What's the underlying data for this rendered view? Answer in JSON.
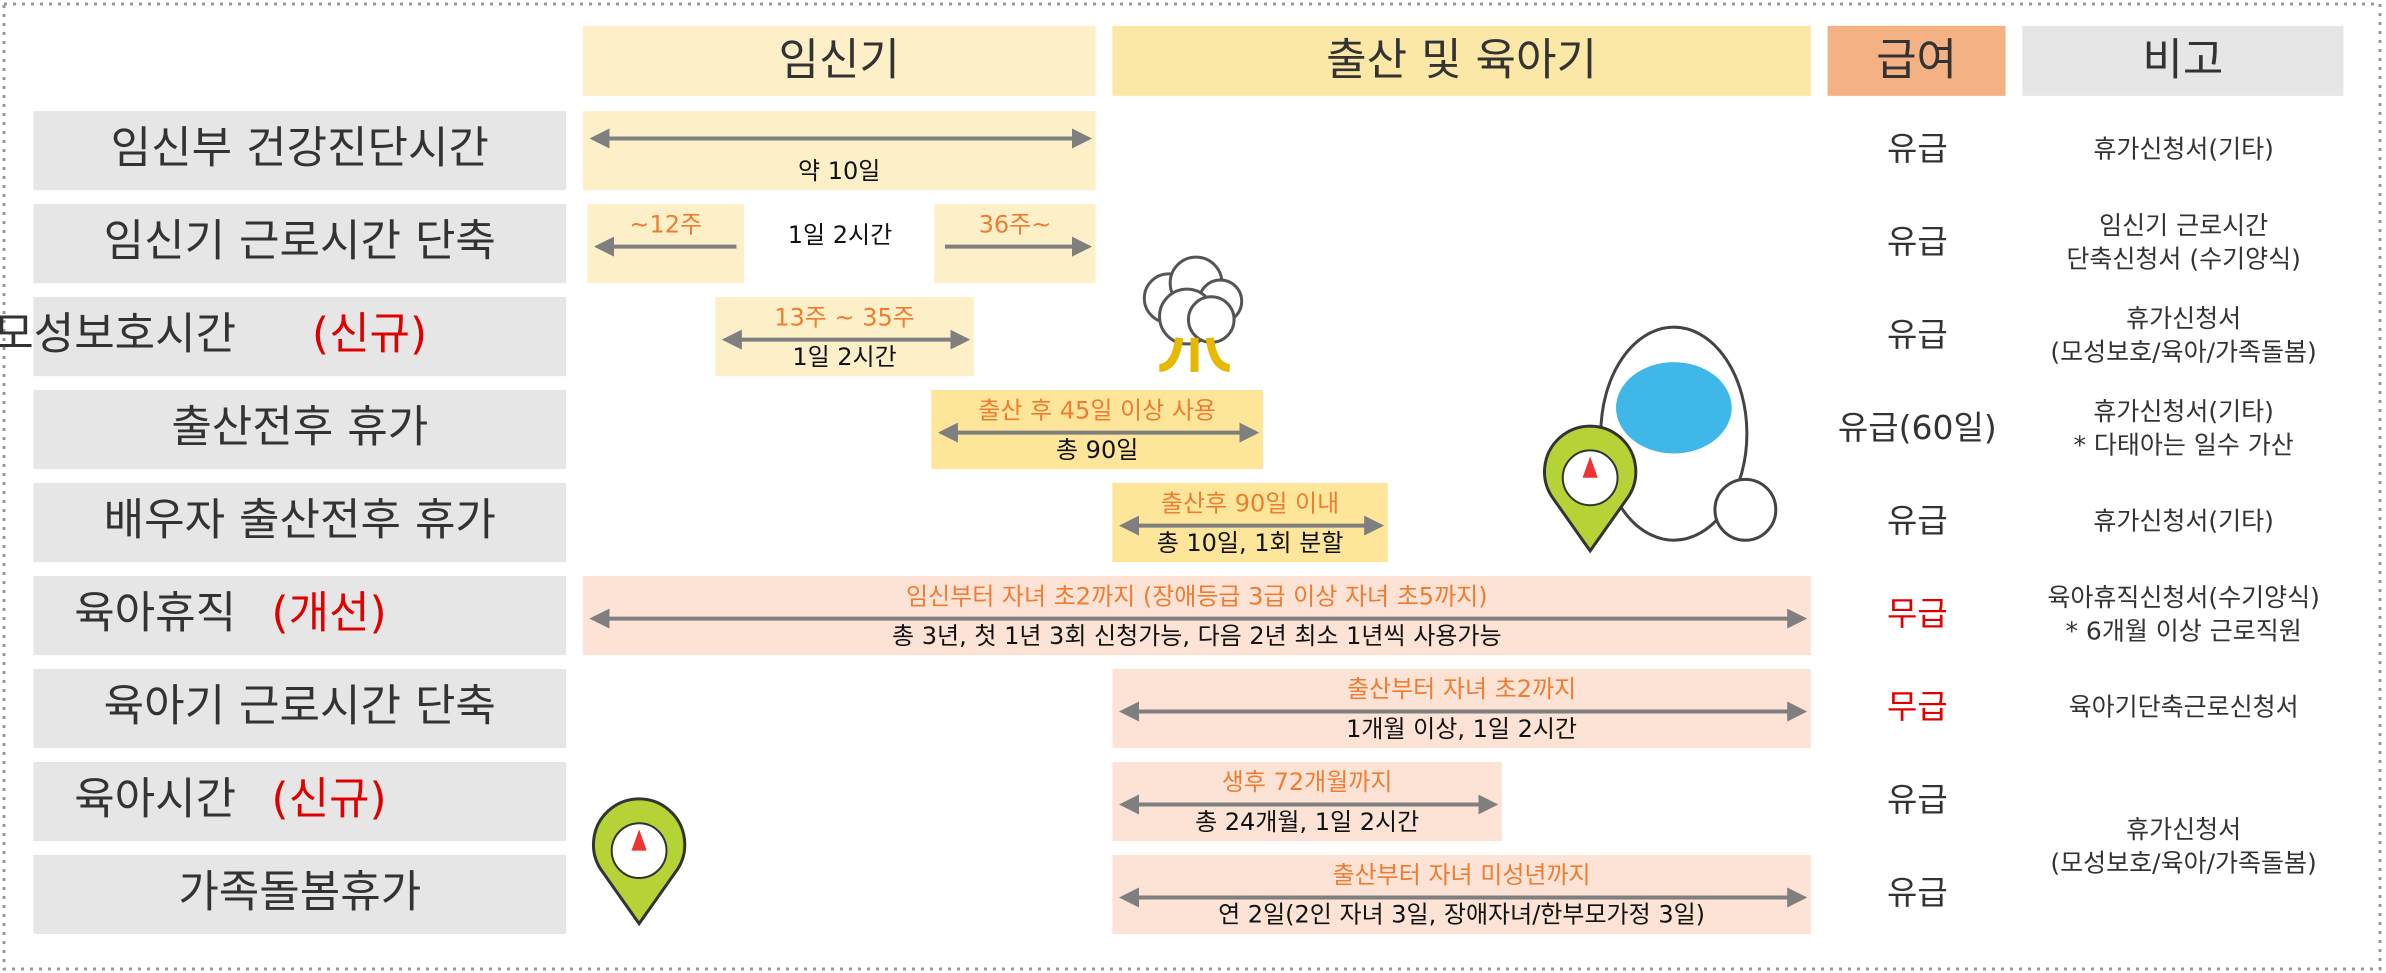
{
  "header": {
    "columns": [
      "임신기",
      "출산 및 육아기",
      "급여",
      "비고"
    ]
  },
  "rows": [
    {
      "label": "임신부 건강진단시간",
      "bars": [
        {
          "bottom": "약 10일"
        }
      ],
      "pay": "유급",
      "note": [
        "휴가신청서(기타)"
      ]
    },
    {
      "label": "임신기 근로시간 단축",
      "bars": [
        {
          "top": "~12주"
        },
        {
          "top": "36주~"
        }
      ],
      "text": "1일 2시간",
      "pay": "유급",
      "note": [
        "임신기 근로시간",
        "단축신청서 (수기양식)"
      ]
    },
    {
      "label": "모성보호시간",
      "tag": "(신규)",
      "bars": [
        {
          "top": "13주 ~ 35주",
          "bottom": "1일 2시간"
        }
      ],
      "pay": "유급",
      "note": [
        "휴가신청서",
        "(모성보호/육아/가족돌봄)"
      ]
    },
    {
      "label": "출산전후 휴가",
      "bars": [
        {
          "top": "출산 후 45일 이상 사용",
          "bottom": "총 90일"
        }
      ],
      "pay": "유급(60일)",
      "note": [
        "휴가신청서(기타)",
        "* 다태아는 일수 가산"
      ]
    },
    {
      "label": "배우자 출산전후 휴가",
      "bars": [
        {
          "top": "출산후 90일 이내",
          "bottom": "총 10일, 1회 분할"
        }
      ],
      "pay": "유급",
      "note": [
        "휴가신청서(기타)"
      ]
    },
    {
      "label": "육아휴직",
      "tag": "(개선)",
      "bars": [
        {
          "top": "임신부터 자녀 초2까지 (장애등급 3급 이상 자녀 초5까지)",
          "bottom": "총 3년, 첫 1년 3회 신청가능, 다음 2년 최소 1년씩 사용가능"
        }
      ],
      "pay": "무급",
      "note": [
        "육아휴직신청서(수기양식)",
        "* 6개월 이상 근로직원"
      ]
    },
    {
      "label": "육아기 근로시간 단축",
      "bars": [
        {
          "top": "출산부터 자녀 초2까지",
          "bottom": "1개월 이상, 1일 2시간"
        }
      ],
      "pay": "무급",
      "note": [
        "육아기단축근로신청서"
      ]
    },
    {
      "label": "육아시간",
      "tag": "(신규)",
      "bars": [
        {
          "top": "생후 72개월까지",
          "bottom": "총 24개월, 1일 2시간"
        }
      ],
      "pay": "유급"
    },
    {
      "label": "가족돌봄휴가",
      "bars": [
        {
          "top": "출산부터 자녀 미성년까지",
          "bottom": "연 2일(2인 자녀 3일, 장애자녀/한부모가정 3일)"
        }
      ],
      "pay": "유급"
    }
  ],
  "merged_note": [
    "휴가신청서",
    "(모성보호/육아/가족돌봄)"
  ]
}
